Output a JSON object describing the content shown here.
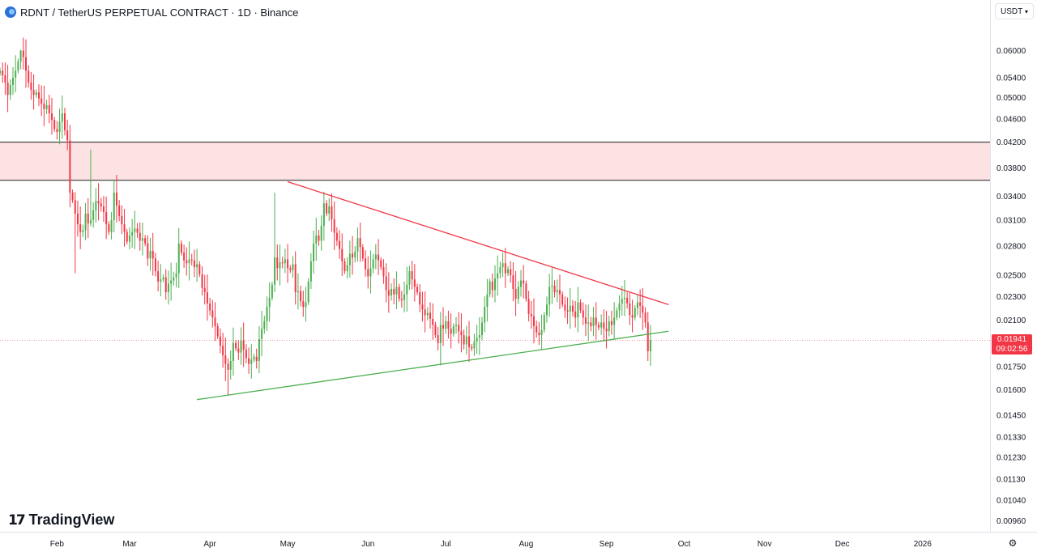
{
  "header": {
    "title": "RDNT / TetherUS PERPETUAL CONTRACT · 1D · Binance"
  },
  "currency_select": {
    "value": "USDT"
  },
  "branding": {
    "name": "TradingView"
  },
  "current_price": {
    "price": "0.01941",
    "countdown": "09:02:56"
  },
  "colors": {
    "up": "#4caf50",
    "down": "#f23645",
    "resistance_zone": "#fde2e4",
    "resistance_line": "#f23645",
    "support_line": "#4caf50",
    "zone_border": "#1e1e1e"
  },
  "icons": {
    "settings": "gear-icon",
    "logo": "rdnt-logo-icon",
    "chevron": "chevron-down-icon"
  },
  "chart_data": {
    "type": "candlestick",
    "y_scale": "log",
    "ylim": [
      0.0092,
      0.0665
    ],
    "y_ticks": [
      "0.06000",
      "0.05400",
      "0.05000",
      "0.04600",
      "0.04200",
      "0.03800",
      "0.03400",
      "0.03100",
      "0.02800",
      "0.02500",
      "0.02300",
      "0.02100",
      "0.01750",
      "0.01600",
      "0.01450",
      "0.01330",
      "0.01230",
      "0.01130",
      "0.01040",
      "0.00960"
    ],
    "x_labels": [
      {
        "label": "Feb",
        "date": "2025-02-01"
      },
      {
        "label": "Mar",
        "date": "2025-03-01"
      },
      {
        "label": "Apr",
        "date": "2025-04-01"
      },
      {
        "label": "May",
        "date": "2025-05-01"
      },
      {
        "label": "Jun",
        "date": "2025-06-01"
      },
      {
        "label": "Jul",
        "date": "2025-07-01"
      },
      {
        "label": "Aug",
        "date": "2025-08-01"
      },
      {
        "label": "Sep",
        "date": "2025-09-01"
      },
      {
        "label": "Oct",
        "date": "2025-10-01"
      },
      {
        "label": "Nov",
        "date": "2025-11-01"
      },
      {
        "label": "Dec",
        "date": "2025-12-01"
      },
      {
        "label": "2026",
        "date": "2026-01-01"
      }
    ],
    "xlim": [
      "2025-01-10",
      "2026-01-27"
    ],
    "first_candle_date": "2025-01-10",
    "close_path": [
      0.0555,
      0.0545,
      0.053,
      0.0505,
      0.0525,
      0.054,
      0.0555,
      0.0575,
      0.06,
      0.0585,
      0.0555,
      0.053,
      0.0515,
      0.0505,
      0.051,
      0.0498,
      0.0488,
      0.0478,
      0.0485,
      0.047,
      0.0458,
      0.0442,
      0.0437,
      0.0455,
      0.047,
      0.044,
      0.0423,
      0.0345,
      0.0335,
      0.0318,
      0.0305,
      0.0296,
      0.0298,
      0.0318,
      0.0306,
      0.031,
      0.0322,
      0.0334,
      0.0331,
      0.0327,
      0.032,
      0.0305,
      0.0296,
      0.031,
      0.0345,
      0.0328,
      0.0315,
      0.0305,
      0.0296,
      0.0285,
      0.0292,
      0.0296,
      0.03,
      0.0295,
      0.0286,
      0.0289,
      0.0283,
      0.0267,
      0.0275,
      0.0267,
      0.0254,
      0.0244,
      0.0246,
      0.0248,
      0.0234,
      0.0242,
      0.0245,
      0.0248,
      0.0252,
      0.0283,
      0.0273,
      0.0265,
      0.0262,
      0.0266,
      0.0265,
      0.0258,
      0.0261,
      0.0251,
      0.0238,
      0.0234,
      0.0224,
      0.0218,
      0.0212,
      0.0205,
      0.0197,
      0.019,
      0.0183,
      0.0177,
      0.0173,
      0.0179,
      0.0192,
      0.0188,
      0.0185,
      0.0194,
      0.0187,
      0.0181,
      0.0177,
      0.018,
      0.0182,
      0.0179,
      0.0195,
      0.0203,
      0.0209,
      0.0221,
      0.0229,
      0.0241,
      0.0268,
      0.0257,
      0.0263,
      0.0262,
      0.0266,
      0.0257,
      0.0255,
      0.0261,
      0.0234,
      0.0235,
      0.0226,
      0.0221,
      0.0225,
      0.0244,
      0.0264,
      0.0283,
      0.0292,
      0.0286,
      0.0303,
      0.0331,
      0.0318,
      0.0327,
      0.0311,
      0.0295,
      0.0286,
      0.0277,
      0.0264,
      0.0254,
      0.026,
      0.0272,
      0.0268,
      0.0274,
      0.0289,
      0.0279,
      0.0267,
      0.0256,
      0.0249,
      0.0257,
      0.0266,
      0.0271,
      0.0265,
      0.0258,
      0.0249,
      0.0236,
      0.0231,
      0.0237,
      0.0232,
      0.0239,
      0.0228,
      0.0227,
      0.0232,
      0.0241,
      0.0254,
      0.0246,
      0.0239,
      0.0234,
      0.0223,
      0.0219,
      0.0214,
      0.0216,
      0.0211,
      0.0206,
      0.0198,
      0.0192,
      0.0206,
      0.0203,
      0.0209,
      0.0203,
      0.0199,
      0.0205,
      0.0206,
      0.0201,
      0.0198,
      0.0191,
      0.0197,
      0.0189,
      0.0188,
      0.0193,
      0.0196,
      0.0198,
      0.0208,
      0.0221,
      0.0232,
      0.0244,
      0.0236,
      0.0247,
      0.0252,
      0.0258,
      0.0262,
      0.0252,
      0.0256,
      0.025,
      0.0237,
      0.0228,
      0.0239,
      0.0245,
      0.0242,
      0.0228,
      0.0215,
      0.0213,
      0.0205,
      0.02,
      0.0198,
      0.0202,
      0.0214,
      0.0223,
      0.0239,
      0.024,
      0.0234,
      0.0236,
      0.0232,
      0.0223,
      0.0218,
      0.0217,
      0.0222,
      0.0217,
      0.0212,
      0.0225,
      0.0218,
      0.0212,
      0.0207,
      0.0208,
      0.0205,
      0.0212,
      0.0206,
      0.0204,
      0.0208,
      0.0203,
      0.0201,
      0.0209,
      0.0206,
      0.0212,
      0.0218,
      0.0224,
      0.0228,
      0.0229,
      0.0224,
      0.0214,
      0.0212,
      0.022,
      0.0225,
      0.0222,
      0.0216,
      0.0208,
      0.0186,
      0.0194
    ],
    "highlighted_extremes": {
      "high_Jan": 0.0602,
      "spike_Feb": 0.0408,
      "low_Apr": 0.0157,
      "spike_Apr_end": 0.0345,
      "high_May": 0.0346
    },
    "resistance_zone": {
      "top": 0.042,
      "bottom": 0.0362
    },
    "resistance_line": {
      "from": {
        "date": "2025-05-01",
        "price": 0.036
      },
      "to": {
        "date": "2025-09-25",
        "price": 0.0223
      }
    },
    "support_line": {
      "from": {
        "date": "2025-03-27",
        "price": 0.0154
      },
      "to": {
        "date": "2025-09-25",
        "price": 0.0201
      }
    },
    "last_price": 0.01941
  }
}
